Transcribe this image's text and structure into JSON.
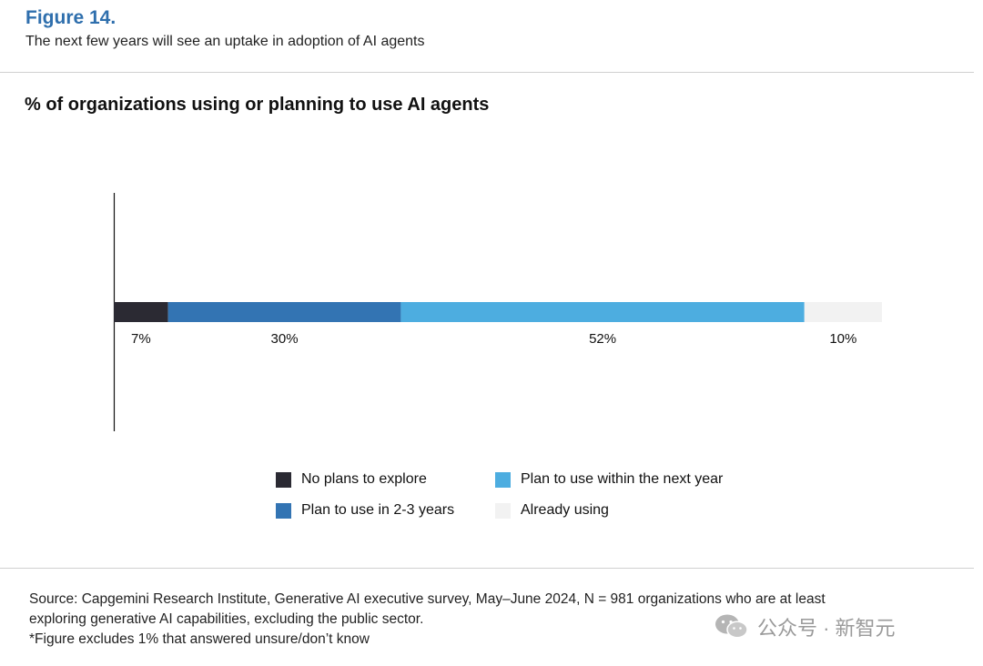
{
  "header": {
    "figure_label": "Figure 14.",
    "subtitle": "The next few years will see an uptake in adoption of AI agents"
  },
  "chart_data": {
    "type": "bar",
    "orientation": "horizontal",
    "stacked": true,
    "title": "% of organizations using or planning to use AI agents",
    "xlabel": "",
    "ylabel": "",
    "xlim": [
      0,
      99
    ],
    "grid": false,
    "legend_position": "bottom",
    "series": [
      {
        "name": "No plans to explore",
        "value": 7,
        "label": "7%",
        "color": "#2b2a33"
      },
      {
        "name": "Plan to use in 2-3 years",
        "value": 30,
        "label": "30%",
        "color": "#3374b3"
      },
      {
        "name": "Plan to use within the next year",
        "value": 52,
        "label": "52%",
        "color": "#4dade0"
      },
      {
        "name": "Already using",
        "value": 10,
        "label": "10%",
        "color": "#f2f2f2"
      }
    ]
  },
  "legend": [
    {
      "label": "No plans to explore",
      "color": "#2b2a33"
    },
    {
      "label": "Plan to use within the next year",
      "color": "#4dade0"
    },
    {
      "label": "Plan to use in 2-3 years",
      "color": "#3374b3"
    },
    {
      "label": "Already using",
      "color": "#f2f2f2"
    }
  ],
  "footer": {
    "source_line1": "Source: Capgemini Research Institute, Generative AI executive survey, May–June 2024, N = 981 organizations who are at least",
    "source_line2": "exploring generative AI capabilities, excluding the public sector.",
    "note": "*Figure excludes 1% that answered unsure/don’t know"
  },
  "watermark": {
    "icon": "wechat-icon",
    "text": "公众号 · 新智元"
  }
}
